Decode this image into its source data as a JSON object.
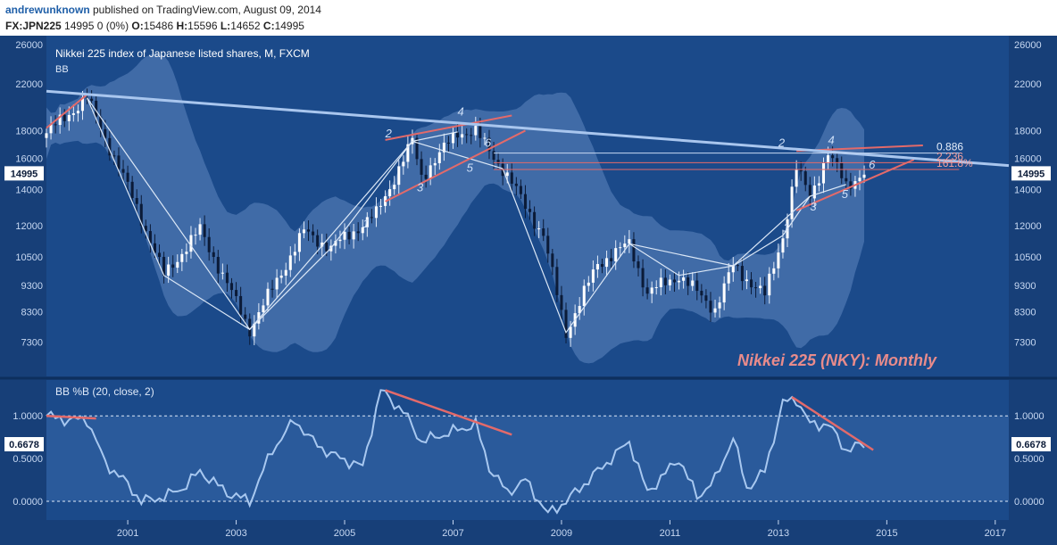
{
  "header": {
    "author": "andrewunknown",
    "published": " published on TradingView.com, August 09, 2014",
    "symbol": "FX:JPN225",
    "last": " 14995 0 (0%) ",
    "o_label": "O:",
    "o_value": "15486",
    "h_label": " H:",
    "h_value": "15596",
    "l_label": " L:",
    "l_value": "14652",
    "c_label": " C:",
    "c_value": "14995"
  },
  "colors": {
    "background": "#1b4a8a",
    "panel_border": "#0d2f5e",
    "bollinger_band": "#5f86c0",
    "candle_up": "#ffffff",
    "candle_down": "#0b1b38",
    "pattern_line": "#dce8f7",
    "trend_line": "#a9c6ee",
    "channel_line": "#e36a6a",
    "indicator_line": "#a8c8f0",
    "title_annotation": "#e88b8b"
  },
  "chart_data": [
    {
      "type": "candlestick",
      "title": "Nikkei 225 index of Japanese listed shares, M, FXCM",
      "indicator_label": "BB",
      "annotation": "Nikkei 225 (NKY): Monthly",
      "y_axis_scale": "log",
      "ylim": [
        6300,
        27000
      ],
      "y_ticks": [
        26000,
        22000,
        18000,
        16000,
        14000,
        12000,
        10500,
        9300,
        8300,
        7300
      ],
      "y_tick_labels": [
        "26000",
        "22000",
        "18000",
        "16000",
        "14000",
        "12000",
        "10500",
        "9300",
        "8300",
        "7300"
      ],
      "last_price_label": "14995",
      "x_range": [
        "1999-07",
        "2017-04"
      ],
      "x_ticks": [
        "2001",
        "2003",
        "2005",
        "2007",
        "2009",
        "2011",
        "2013",
        "2015",
        "2017"
      ],
      "grid": false,
      "close_path": [
        [
          "1999-07",
          17800
        ],
        [
          "2000-04",
          20700
        ],
        [
          "2001-03",
          13000
        ],
        [
          "2001-09",
          9700
        ],
        [
          "2002-05",
          11800
        ],
        [
          "2003-04",
          7700
        ],
        [
          "2004-04",
          11700
        ],
        [
          "2004-10",
          10900
        ],
        [
          "2005-08",
          12600
        ],
        [
          "2006-04",
          17200
        ],
        [
          "2006-06",
          14800
        ],
        [
          "2007-02",
          17900
        ],
        [
          "2007-06",
          17900
        ],
        [
          "2007-12",
          15300
        ],
        [
          "2008-09",
          11500
        ],
        [
          "2009-02",
          7600
        ],
        [
          "2009-09",
          10200
        ],
        [
          "2010-04",
          11100
        ],
        [
          "2010-08",
          9000
        ],
        [
          "2011-03",
          9700
        ],
        [
          "2011-11",
          8400
        ],
        [
          "2012-03",
          10100
        ],
        [
          "2012-10",
          8900
        ],
        [
          "2013-02",
          11500
        ],
        [
          "2013-05",
          15300
        ],
        [
          "2013-08",
          13600
        ],
        [
          "2013-12",
          16300
        ],
        [
          "2014-04",
          14300
        ],
        [
          "2014-08",
          14995
        ]
      ],
      "pattern_labels": [
        "2",
        "4",
        "6",
        "1",
        "3",
        "5",
        "2",
        "4",
        "6",
        "1",
        "3",
        "5"
      ],
      "fib_levels": [
        {
          "label": "0.886",
          "value": 16350
        },
        {
          "label": "2.236",
          "value": 15700
        },
        {
          "label": "161.8%",
          "value": 15250
        }
      ]
    },
    {
      "type": "line",
      "title": "BB %B (20, close, 2)",
      "ylim": [
        -0.22,
        1.42
      ],
      "y_ticks": [
        1.0,
        0.5,
        0.0
      ],
      "y_tick_labels": [
        "1.0000",
        "0.5000",
        "0.0000"
      ],
      "reference_lines": [
        1.0,
        0.0
      ],
      "last_value_label": "0.6678",
      "series": [
        {
          "points": [
            [
              "1999-07",
              1.0
            ],
            [
              "1999-12",
              0.95
            ],
            [
              "2000-04",
              0.96
            ],
            [
              "2000-08",
              0.45
            ],
            [
              "2001-01",
              0.2
            ],
            [
              "2001-04",
              0.0
            ],
            [
              "2001-09",
              0.05
            ],
            [
              "2002-01",
              0.15
            ],
            [
              "2002-05",
              0.35
            ],
            [
              "2002-11",
              0.1
            ],
            [
              "2003-04",
              0.0
            ],
            [
              "2003-09",
              0.6
            ],
            [
              "2004-02",
              0.95
            ],
            [
              "2004-06",
              0.7
            ],
            [
              "2004-10",
              0.55
            ],
            [
              "2005-05",
              0.4
            ],
            [
              "2005-09",
              1.3
            ],
            [
              "2006-02",
              1.05
            ],
            [
              "2006-06",
              0.7
            ],
            [
              "2007-03",
              0.85
            ],
            [
              "2007-06",
              0.9
            ],
            [
              "2007-09",
              0.4
            ],
            [
              "2008-01",
              0.1
            ],
            [
              "2008-05",
              0.25
            ],
            [
              "2008-10",
              -0.15
            ],
            [
              "2009-02",
              0.0
            ],
            [
              "2009-09",
              0.35
            ],
            [
              "2010-04",
              0.7
            ],
            [
              "2010-08",
              0.1
            ],
            [
              "2011-03",
              0.5
            ],
            [
              "2011-07",
              0.05
            ],
            [
              "2011-11",
              0.25
            ],
            [
              "2012-03",
              0.75
            ],
            [
              "2012-06",
              0.15
            ],
            [
              "2012-10",
              0.35
            ],
            [
              "2013-02",
              1.15
            ],
            [
              "2013-05",
              1.2
            ],
            [
              "2013-08",
              0.9
            ],
            [
              "2013-12",
              0.9
            ],
            [
              "2014-04",
              0.6
            ],
            [
              "2014-08",
              0.6678
            ]
          ]
        }
      ]
    }
  ]
}
